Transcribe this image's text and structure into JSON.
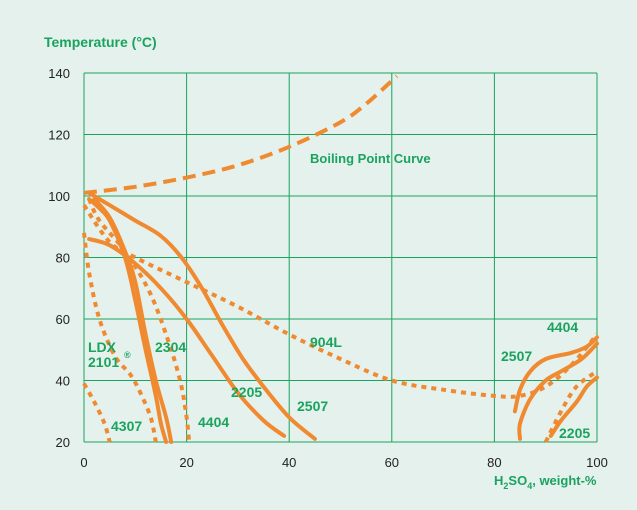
{
  "colors": {
    "background": "#e5f1ec",
    "grid": "#1aa35e",
    "curve": "#f08a30",
    "label": "#1aa35e",
    "tick": "#222222"
  },
  "chart_data": {
    "type": "line",
    "title": "",
    "ylabel": "Temperature (°C)",
    "xlabel_parts": {
      "prefix": "H",
      "sub1": "2",
      "mid": "SO",
      "sub2": "4",
      "suffix": ", weight-%"
    },
    "xlim": [
      0,
      100
    ],
    "ylim": [
      20,
      140
    ],
    "xticks": [
      0,
      20,
      40,
      60,
      80,
      100
    ],
    "yticks": [
      20,
      40,
      60,
      80,
      100,
      120,
      140
    ],
    "grid": true,
    "series": [
      {
        "name": "Boiling Point Curve",
        "style": "dashed",
        "points": [
          [
            0,
            101
          ],
          [
            10,
            103
          ],
          [
            20,
            106
          ],
          [
            30,
            110
          ],
          [
            40,
            116
          ],
          [
            50,
            124
          ],
          [
            55,
            130
          ],
          [
            61,
            139
          ]
        ]
      },
      {
        "name": "904L",
        "style": "dotted",
        "points": [
          [
            0,
            97
          ],
          [
            5,
            85
          ],
          [
            10,
            80
          ],
          [
            20,
            72
          ],
          [
            30,
            64
          ],
          [
            40,
            55
          ],
          [
            50,
            47
          ],
          [
            60,
            40
          ],
          [
            70,
            37
          ],
          [
            80,
            35
          ],
          [
            85,
            35
          ],
          [
            90,
            38
          ],
          [
            95,
            45
          ],
          [
            100,
            55
          ]
        ]
      },
      {
        "name": "4404",
        "style": "dotted",
        "points": [
          [
            1,
            99
          ],
          [
            3,
            92
          ],
          [
            8,
            82
          ],
          [
            13,
            68
          ],
          [
            17,
            50
          ],
          [
            19,
            38
          ],
          [
            20,
            28
          ],
          [
            20.5,
            20
          ]
        ]
      },
      {
        "name": "4404",
        "style": "solid",
        "points": [
          [
            84,
            30
          ],
          [
            85,
            37
          ],
          [
            87,
            43
          ],
          [
            90,
            47
          ],
          [
            95,
            49
          ],
          [
            98,
            51
          ],
          [
            100,
            54
          ]
        ]
      },
      {
        "name": "4404",
        "style": "dotted",
        "points": [
          [
            90,
            20
          ],
          [
            93,
            30
          ],
          [
            96,
            38
          ],
          [
            100,
            43
          ]
        ]
      },
      {
        "name": "4307",
        "style": "dotted",
        "points": [
          [
            0,
            39
          ],
          [
            2,
            33
          ],
          [
            4,
            26
          ],
          [
            5,
            20
          ]
        ]
      },
      {
        "name": "LDX 2101®",
        "style": "dotted",
        "points": [
          [
            0,
            88
          ],
          [
            1,
            75
          ],
          [
            3,
            60
          ],
          [
            6,
            48
          ],
          [
            9,
            42
          ],
          [
            11,
            36
          ],
          [
            13,
            28
          ],
          [
            14,
            20
          ]
        ]
      },
      {
        "name": "2304",
        "style": "solid",
        "points": [
          [
            2,
            99
          ],
          [
            5,
            93
          ],
          [
            8,
            82
          ],
          [
            10,
            72
          ],
          [
            12,
            55
          ],
          [
            14,
            40
          ],
          [
            16,
            28
          ],
          [
            17,
            20
          ]
        ]
      },
      {
        "name": "LDX 2101®",
        "style": "solid",
        "points": [
          [
            1,
            99
          ],
          [
            3,
            96
          ],
          [
            5,
            92
          ],
          [
            8,
            80
          ],
          [
            10,
            66
          ],
          [
            12,
            50
          ],
          [
            14,
            35
          ],
          [
            15,
            26
          ],
          [
            16,
            20
          ]
        ]
      },
      {
        "name": "2205",
        "style": "solid",
        "points": [
          [
            1,
            86
          ],
          [
            5,
            84
          ],
          [
            10,
            78
          ],
          [
            15,
            70
          ],
          [
            20,
            60
          ],
          [
            25,
            48
          ],
          [
            30,
            36
          ],
          [
            35,
            27
          ],
          [
            39,
            22
          ]
        ]
      },
      {
        "name": "2205",
        "style": "solid",
        "points": [
          [
            91,
            22
          ],
          [
            93,
            27
          ],
          [
            96,
            33
          ],
          [
            98,
            38
          ],
          [
            100,
            41
          ]
        ]
      },
      {
        "name": "2507",
        "style": "solid",
        "points": [
          [
            1,
            101
          ],
          [
            5,
            97
          ],
          [
            10,
            92
          ],
          [
            15,
            87
          ],
          [
            19,
            80
          ],
          [
            23,
            70
          ],
          [
            27,
            58
          ],
          [
            31,
            47
          ],
          [
            35,
            38
          ],
          [
            40,
            28
          ],
          [
            45,
            21
          ]
        ]
      },
      {
        "name": "2507",
        "style": "solid",
        "points": [
          [
            85,
            21
          ],
          [
            85,
            26
          ],
          [
            87,
            34
          ],
          [
            90,
            40
          ],
          [
            93,
            43
          ],
          [
            97,
            47
          ],
          [
            100,
            52
          ]
        ]
      }
    ],
    "annotations": {
      "ylabel": "Temperature (°C)",
      "boiling": "Boiling Point Curve",
      "s904": "904L",
      "ldx_line1": "LDX",
      "ldx_line2": "2101",
      "ldx_reg": "®",
      "s2304": "2304",
      "s2205_left": "2205",
      "s2507_left": "2507",
      "s4307": "4307",
      "s4404_left": "4404",
      "s4404_right": "4404",
      "s2507_right": "2507",
      "s2205_right": "2205"
    }
  }
}
